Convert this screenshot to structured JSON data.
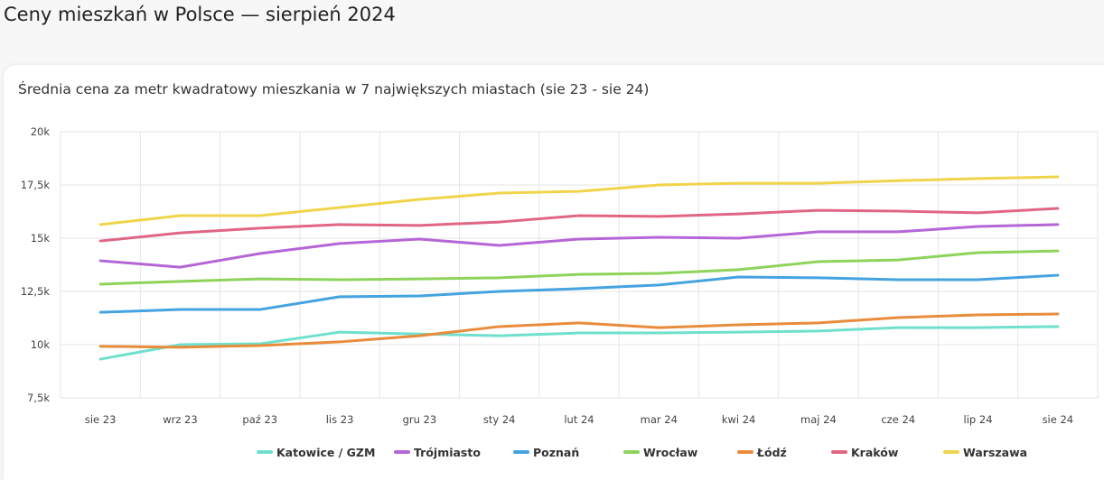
{
  "page_title": "Ceny mieszkań w Polsce — sierpień 2024",
  "chart_data": {
    "type": "line",
    "title": "Średnia cena za metr kwadratowy mieszkania w 7 największych miastach (sie 23 - sie 24)",
    "xlabel": "",
    "ylabel": "",
    "ylim": [
      7500,
      20000
    ],
    "yticks": [
      {
        "v": 7500,
        "label": "7,5k"
      },
      {
        "v": 10000,
        "label": "10k"
      },
      {
        "v": 12500,
        "label": "12,5k"
      },
      {
        "v": 15000,
        "label": "15k"
      },
      {
        "v": 17500,
        "label": "17,5k"
      },
      {
        "v": 20000,
        "label": "20k"
      }
    ],
    "categories": [
      "sie 23",
      "wrz 23",
      "paź 23",
      "lis 23",
      "gru 23",
      "sty 24",
      "lut 24",
      "mar 24",
      "kwi 24",
      "maj 24",
      "cze 24",
      "lip 24",
      "sie 24"
    ],
    "grid": true,
    "legend": "bottom",
    "series": [
      {
        "name": "Katowice / GZM",
        "color": "#6fe0cc",
        "values": [
          9320,
          10000,
          10040,
          10590,
          10500,
          10420,
          10550,
          10550,
          10590,
          10640,
          10800,
          10800,
          10850
        ]
      },
      {
        "name": "Trójmiasto",
        "color": "#b566d6",
        "values": [
          13940,
          13640,
          14280,
          14750,
          14960,
          14660,
          14960,
          15040,
          15000,
          15300,
          15300,
          15550,
          15640
        ]
      },
      {
        "name": "Poznań",
        "color": "#44a3e0",
        "values": [
          11520,
          11650,
          11650,
          12250,
          12290,
          12500,
          12630,
          12800,
          13180,
          13140,
          13050,
          13050,
          13260
        ]
      },
      {
        "name": "Wrocław",
        "color": "#8ed35a",
        "values": [
          12840,
          12970,
          13090,
          13050,
          13090,
          13140,
          13300,
          13350,
          13520,
          13900,
          13980,
          14320,
          14400
        ]
      },
      {
        "name": "Łódź",
        "color": "#e88c3c",
        "values": [
          9920,
          9880,
          9960,
          10130,
          10420,
          10850,
          11020,
          10800,
          10930,
          11020,
          11270,
          11400,
          11440
        ]
      },
      {
        "name": "Kraków",
        "color": "#e06684",
        "values": [
          14870,
          15250,
          15470,
          15640,
          15600,
          15760,
          16060,
          16020,
          16140,
          16310,
          16270,
          16190,
          16400
        ]
      },
      {
        "name": "Warszawa",
        "color": "#f0d44a",
        "values": [
          15640,
          16060,
          16060,
          16440,
          16820,
          17120,
          17200,
          17500,
          17580,
          17580,
          17700,
          17800,
          17880
        ]
      }
    ]
  }
}
